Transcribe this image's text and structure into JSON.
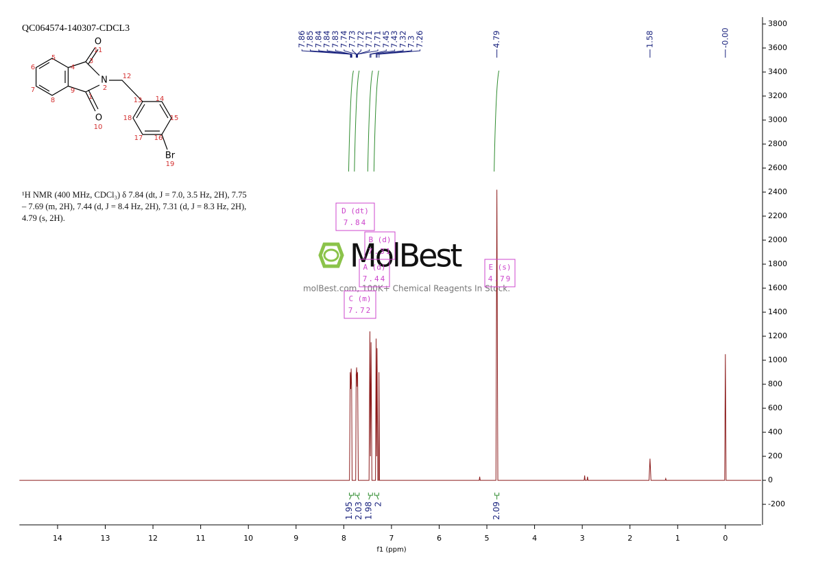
{
  "chart_data": {
    "type": "line",
    "title": "QC064574-140307-CDCL3",
    "description": "¹H NMR (400 MHz, CDCl₃) δ 7.84 (dt, J = 7.0, 3.5 Hz, 2H), 7.75 – 7.69 (m, 2H), 7.44 (d, J = 8.4 Hz, 2H), 7.31 (d, J = 8.3 Hz, 2H), 4.79 (s, 2H).",
    "x_label": "f1 (ppm)",
    "color": "#8b1a1a",
    "x": [
      14.8,
      7.88,
      7.865,
      7.855,
      7.845,
      7.835,
      7.825,
      7.75,
      7.74,
      7.73,
      7.72,
      7.71,
      7.695,
      7.47,
      7.452,
      7.44,
      7.428,
      7.41,
      7.335,
      7.322,
      7.31,
      7.302,
      7.285,
      7.27,
      7.262,
      7.25,
      5.16,
      5.15,
      5.14,
      4.81,
      4.79,
      4.77,
      2.96,
      2.95,
      2.94,
      2.9,
      2.89,
      2.88,
      1.6,
      1.58,
      1.56,
      1.26,
      1.25,
      1.24,
      0.015,
      0,
      -0.015,
      -0.75
    ],
    "values": [
      0,
      0,
      900,
      760,
      930,
      770,
      0,
      0,
      880,
      940,
      780,
      900,
      0,
      0,
      1240,
      200,
      1150,
      0,
      0,
      1180,
      200,
      1100,
      0,
      0,
      900,
      0,
      0,
      30,
      0,
      0,
      2420,
      0,
      0,
      40,
      0,
      0,
      30,
      0,
      0,
      180,
      0,
      0,
      15,
      0,
      0,
      1050,
      0,
      0
    ],
    "xlim": [
      14.8,
      -0.75
    ],
    "xticks": [
      14,
      13,
      12,
      11,
      10,
      9,
      8,
      7,
      6,
      5,
      4,
      3,
      2,
      1,
      0
    ],
    "ylim": [
      -371,
      3857
    ],
    "yticks": [
      -200,
      0,
      200,
      400,
      600,
      800,
      1000,
      1200,
      1400,
      1600,
      1800,
      2000,
      2200,
      2400,
      2600,
      2800,
      3000,
      3200,
      3400,
      3600,
      3800
    ],
    "peak_color": "#1a237e",
    "peaks": [
      7.86,
      7.85,
      7.84,
      7.84,
      7.83,
      7.74,
      7.73,
      7.72,
      7.71,
      7.71,
      7.45,
      7.43,
      7.32,
      7.3,
      7.26,
      4.79,
      1.58,
      {
        "value": 0,
        "label": "-0.00"
      }
    ],
    "integral_color": "#2e8b2e",
    "integrals": [
      {
        "ppm": 7.84,
        "value": 1.95
      },
      {
        "ppm": 7.72,
        "value": 2.03
      },
      {
        "ppm": 7.44,
        "value": 1.98
      },
      {
        "ppm": 7.31,
        "value": 2.0
      },
      {
        "ppm": 4.79,
        "value": 2.09
      }
    ],
    "multiplets": [
      {
        "label": "D (dt)",
        "shift": "7.84"
      },
      {
        "label": "B (d)",
        "shift": "7.31"
      },
      {
        "label": "A (d)",
        "shift": "7.44"
      },
      {
        "label": "C (m)",
        "shift": "7.72"
      },
      {
        "label": "E (s)",
        "shift": "4.79"
      }
    ]
  },
  "watermark": {
    "brand": "MolBest",
    "tagline": "molBest.com, 100K+ Chemical Reagents In Stock."
  },
  "molecule": {
    "labels": [
      "O",
      "11",
      "N",
      "2",
      "12",
      "3",
      "4",
      "5",
      "6",
      "7",
      "8",
      "9",
      "1",
      "O",
      "10",
      "13",
      "14",
      "15",
      "16",
      "17",
      "18",
      "Br",
      "19"
    ]
  }
}
